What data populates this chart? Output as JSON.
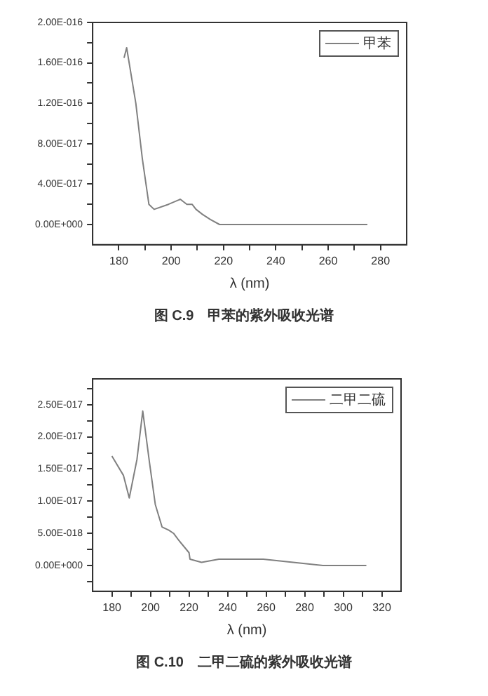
{
  "chart_data": [
    {
      "type": "line",
      "xlabel": "λ (nm)",
      "annotations": [
        "图 C.9　甲苯的紫外吸收光谱"
      ],
      "legend": "top right",
      "grid": false,
      "marker": "none",
      "line_style": "solid",
      "xlim": [
        170,
        290
      ],
      "xticks": [
        180,
        {
          "value": 190,
          "label": null
        },
        200,
        {
          "value": 210,
          "label": null
        },
        220,
        {
          "value": 230,
          "label": null
        },
        240,
        {
          "value": 250,
          "label": null
        },
        260,
        {
          "value": 270,
          "label": null
        },
        280
      ],
      "ylim": [
        -2e-17,
        2e-16
      ],
      "yticks": [
        {
          "value": 0,
          "label": "0.00E+000"
        },
        {
          "value": 2e-17,
          "label": null
        },
        {
          "value": 4e-17,
          "label": "4.00E-017"
        },
        {
          "value": 6e-17,
          "label": null
        },
        {
          "value": 8e-17,
          "label": "8.00E-017"
        },
        {
          "value": 1e-16,
          "label": null
        },
        {
          "value": 1.2e-16,
          "label": "1.20E-016"
        },
        {
          "value": 1.4e-16,
          "label": null
        },
        {
          "value": 1.6e-16,
          "label": "1.60E-016"
        },
        {
          "value": 1.8e-16,
          "label": null
        },
        {
          "value": 2e-16,
          "label": "2.00E-016"
        }
      ],
      "series": [
        {
          "name": "甲苯",
          "color": "#808080",
          "x": [
            182,
            183,
            186.5,
            189,
            191.5,
            193.5,
            199,
            203.5,
            206,
            208,
            209.5,
            212,
            215,
            218.5,
            275
          ],
          "values": [
            1.65e-16,
            1.75e-16,
            1.2e-16,
            6.5e-17,
            2e-17,
            1.5e-17,
            2e-17,
            2.5e-17,
            2e-17,
            2e-17,
            1.5e-17,
            1e-17,
            5e-18,
            0,
            0
          ]
        }
      ]
    },
    {
      "type": "line",
      "xlabel": "λ (nm)",
      "annotations": [
        "图 C.10　二甲二硫的紫外吸收光谱"
      ],
      "legend": "top right",
      "grid": false,
      "marker": "none",
      "line_style": "solid",
      "xlim": [
        170,
        330
      ],
      "xticks": [
        180,
        {
          "value": 190,
          "label": null
        },
        200,
        {
          "value": 210,
          "label": null
        },
        220,
        {
          "value": 230,
          "label": null
        },
        240,
        {
          "value": 250,
          "label": null
        },
        260,
        {
          "value": 270,
          "label": null
        },
        280,
        {
          "value": 290,
          "label": null
        },
        300,
        {
          "value": 310,
          "label": null
        },
        320
      ],
      "ylim": [
        -4e-18,
        2.9e-17
      ],
      "yticks": [
        {
          "value": -2.5e-18,
          "label": null
        },
        {
          "value": 0,
          "label": "0.00E+000"
        },
        {
          "value": 2.5e-18,
          "label": null
        },
        {
          "value": 5e-18,
          "label": "5.00E-018"
        },
        {
          "value": 7.5e-18,
          "label": null
        },
        {
          "value": 1e-17,
          "label": "1.00E-017"
        },
        {
          "value": 1.25e-17,
          "label": null
        },
        {
          "value": 1.5e-17,
          "label": "1.50E-017"
        },
        {
          "value": 1.75e-17,
          "label": null
        },
        {
          "value": 2e-17,
          "label": "2.00E-017"
        },
        {
          "value": 2.25e-17,
          "label": null
        },
        {
          "value": 2.5e-17,
          "label": "2.50E-017"
        },
        {
          "value": 2.75e-17,
          "label": null
        }
      ],
      "series": [
        {
          "name": "二甲二硫",
          "color": "#808080",
          "x": [
            180,
            186,
            189,
            193,
            196,
            199.5,
            202.5,
            206,
            209.5,
            212,
            214.5,
            220,
            220.5,
            226.5,
            235.5,
            248,
            258.5,
            274,
            289.5,
            300,
            312
          ],
          "values": [
            1.7e-17,
            1.4e-17,
            1.05e-17,
            1.65e-17,
            2.4e-17,
            1.6e-17,
            9.5e-18,
            6e-18,
            5.5e-18,
            5e-18,
            4e-18,
            2e-18,
            1e-18,
            5e-19,
            1e-18,
            1e-18,
            1e-18,
            5e-19,
            0,
            0,
            0
          ]
        }
      ]
    }
  ]
}
